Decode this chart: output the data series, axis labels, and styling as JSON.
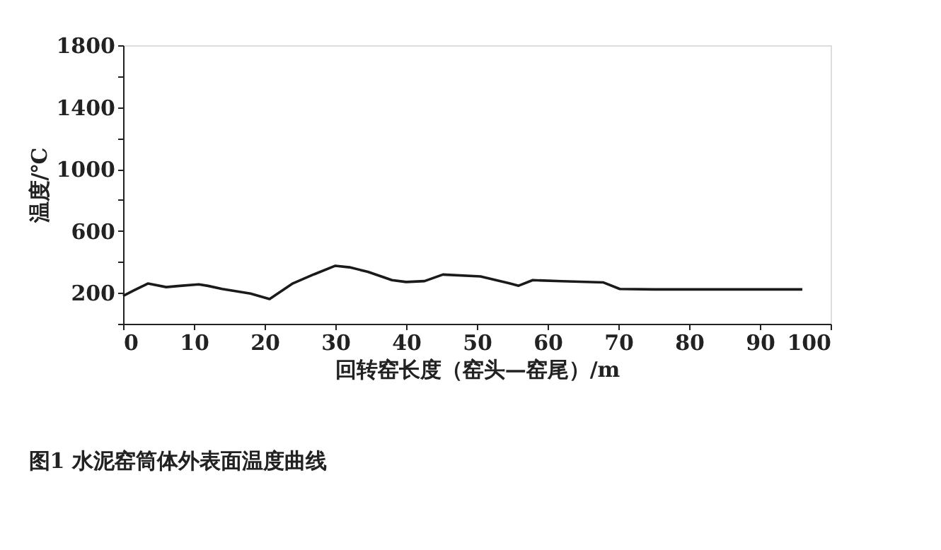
{
  "chart_data": {
    "type": "line",
    "xlabel": "回转窑长度（窑头—窑尾）/m",
    "ylabel": "温度/℃",
    "annotations": [
      "图1    水泥窑筒体外表面温度曲线"
    ],
    "x": [
      0,
      1.5,
      3.5,
      6.1,
      8,
      10.7,
      12,
      14,
      16,
      18,
      20.7,
      22,
      24,
      27,
      30,
      32,
      34.6,
      38,
      40,
      42.6,
      45.2,
      50.5,
      54.6,
      55.9,
      57.9,
      62,
      67.9,
      70.2,
      75,
      80,
      85,
      90,
      96
    ],
    "series": [
      {
        "color": "#1a1a1a",
        "values": [
          180,
          215,
          260,
          237,
          245,
          255,
          245,
          225,
          210,
          195,
          160,
          200,
          261,
          320,
          375,
          365,
          336,
          282,
          270,
          276,
          318,
          306,
          261,
          246,
          282,
          275,
          267,
          225,
          222,
          222,
          222,
          222,
          222
        ]
      }
    ],
    "xlim": [
      0,
      100
    ],
    "xticks": [
      0,
      10,
      20,
      30,
      40,
      50,
      60,
      70,
      80,
      90,
      100
    ],
    "ylim": [
      0,
      1800
    ],
    "yticks": [
      {
        "value": 0,
        "label": null
      },
      200,
      {
        "value": 400,
        "label": null
      },
      600,
      {
        "value": 800,
        "label": null
      },
      1000,
      {
        "value": 1200,
        "label": null
      },
      1400,
      {
        "value": 1600,
        "label": null
      },
      1800
    ],
    "grid": false,
    "marker": "none",
    "line_style": "solid"
  }
}
